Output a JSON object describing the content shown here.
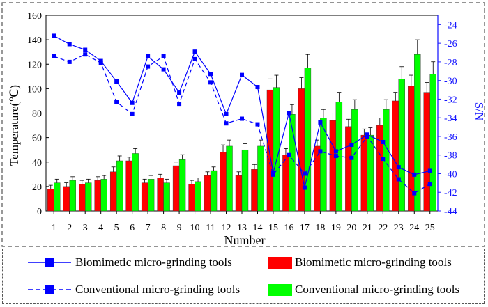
{
  "chart_data": {
    "type": "bar",
    "xlabel": "Number",
    "ylabel": "Temperature(℃)",
    "y2label": "S/N",
    "ylim": [
      0,
      160
    ],
    "y2lim": [
      -44,
      -23
    ],
    "yticks": [
      0,
      20,
      40,
      60,
      80,
      100,
      120,
      140,
      160
    ],
    "y2ticks": [
      -44,
      -42,
      -40,
      -38,
      -36,
      -34,
      -32,
      -30,
      -28,
      -26,
      -24
    ],
    "categories": [
      "1",
      "2",
      "3",
      "4",
      "5",
      "6",
      "7",
      "8",
      "9",
      "10",
      "11",
      "12",
      "13",
      "14",
      "15",
      "16",
      "17",
      "18",
      "19",
      "20",
      "21",
      "22",
      "23",
      "24",
      "25"
    ],
    "series": [
      {
        "name": "Biomimetic micro-grinding tools",
        "kind": "bar",
        "color": "#ff0000",
        "values": [
          18,
          20,
          22,
          25,
          32,
          41,
          23,
          27,
          37,
          22,
          29,
          48,
          29,
          34,
          99,
          46,
          100,
          53,
          74,
          69,
          62,
          70,
          90,
          102,
          97
        ],
        "errors": [
          3,
          3,
          3,
          3,
          4,
          3,
          3,
          3,
          3,
          3,
          3,
          6,
          3,
          4,
          9,
          5,
          9,
          5,
          6,
          6,
          5,
          6,
          7,
          9,
          8
        ]
      },
      {
        "name": "Conventional micro-grinding tools",
        "kind": "bar",
        "color": "#00ff00",
        "values": [
          23,
          25,
          23,
          26,
          41,
          47,
          26,
          23,
          42,
          24,
          33,
          53,
          50,
          53,
          101,
          79,
          117,
          76,
          89,
          83,
          62,
          83,
          108,
          128,
          112
        ],
        "errors": [
          3,
          3,
          3,
          3,
          4,
          4,
          3,
          3,
          4,
          3,
          3,
          5,
          5,
          5,
          10,
          8,
          11,
          7,
          8,
          8,
          6,
          8,
          10,
          12,
          10
        ]
      },
      {
        "name": "Biomimetic micro-grinding tools",
        "kind": "line",
        "axis": "right",
        "color": "#0000ff",
        "values": [
          -25.2,
          -26.1,
          -26.7,
          -27.9,
          -30.1,
          -32.4,
          -27.4,
          -28.8,
          -31.3,
          -26.9,
          -29.3,
          -33.6,
          -29.4,
          -30.7,
          -39.9,
          -33.5,
          -41.5,
          -34.5,
          -37.6,
          -36.9,
          -35.8,
          -36.6,
          -39.3,
          -40.1,
          -39.7
        ]
      },
      {
        "name": "Conventional micro-grinding tools",
        "kind": "line",
        "axis": "right",
        "color": "#0000ff",
        "dashed": true,
        "values": [
          -27.4,
          -28.0,
          -27.2,
          -28.1,
          -32.3,
          -33.6,
          -28.5,
          -27.4,
          -32.5,
          -27.7,
          -30.2,
          -34.6,
          -34.1,
          -34.7,
          -40.1,
          -38.0,
          -40.0,
          -37.6,
          -38.1,
          -38.3,
          -36.0,
          -38.4,
          -40.6,
          -42.1,
          -41.1
        ]
      }
    ],
    "legend": {
      "placement": "bottom",
      "items": [
        "Biomimetic micro-grinding tools",
        "Biomimetic micro-grinding tools",
        "Conventional micro-grinding tools",
        "Conventional micro-grinding tools"
      ]
    }
  }
}
